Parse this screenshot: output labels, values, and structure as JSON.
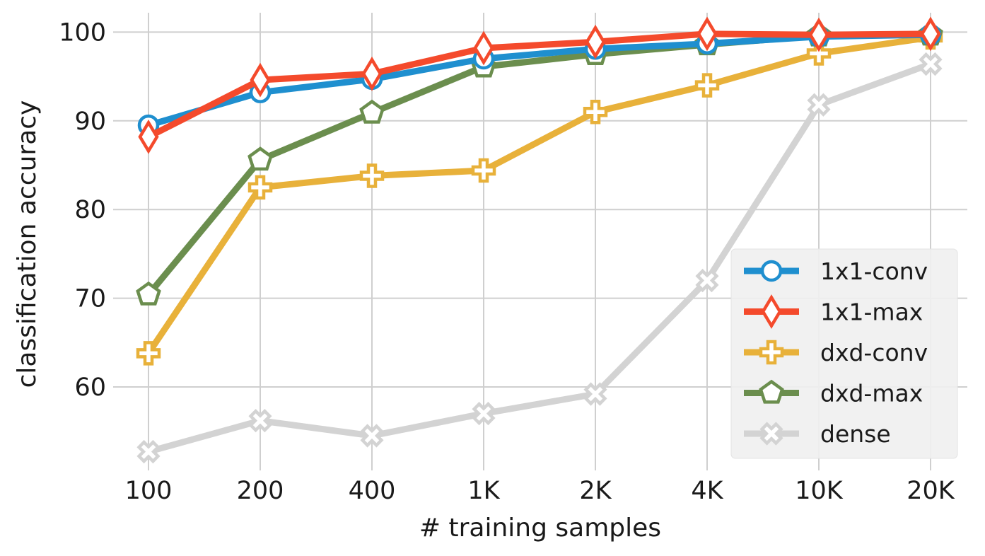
{
  "chart_data": {
    "type": "line",
    "title": "",
    "xlabel": "# training samples",
    "ylabel": "classification accuracy",
    "categories": [
      "100",
      "200",
      "400",
      "1K",
      "2K",
      "4K",
      "10K",
      "20K"
    ],
    "ylim": [
      51,
      102
    ],
    "yticks": [
      "60",
      "70",
      "80",
      "90",
      "100"
    ],
    "grid": true,
    "legend_position": "bottom-right",
    "series": [
      {
        "name": "1x1-conv",
        "color": "#1f8fcf",
        "marker": "circle",
        "values": [
          89.5,
          93.2,
          94.7,
          97.0,
          98.1,
          98.7,
          99.5,
          99.7
        ]
      },
      {
        "name": "1x1-max",
        "color": "#f44a2c",
        "marker": "diamond",
        "values": [
          88.2,
          94.6,
          95.3,
          98.2,
          98.9,
          99.8,
          99.7,
          99.8
        ]
      },
      {
        "name": "dxd-conv",
        "color": "#e8b13a",
        "marker": "plus",
        "values": [
          63.8,
          82.5,
          83.8,
          84.4,
          91.0,
          94.0,
          97.6,
          99.4
        ]
      },
      {
        "name": "dxd-max",
        "color": "#6b8e4e",
        "marker": "pentagon",
        "values": [
          70.4,
          85.6,
          90.9,
          96.1,
          97.5,
          98.6,
          99.6,
          99.7
        ]
      },
      {
        "name": "dense",
        "color": "#d3d3d3",
        "marker": "x",
        "values": [
          52.7,
          56.2,
          54.5,
          57.0,
          59.2,
          72.0,
          91.8,
          96.4
        ]
      }
    ]
  }
}
